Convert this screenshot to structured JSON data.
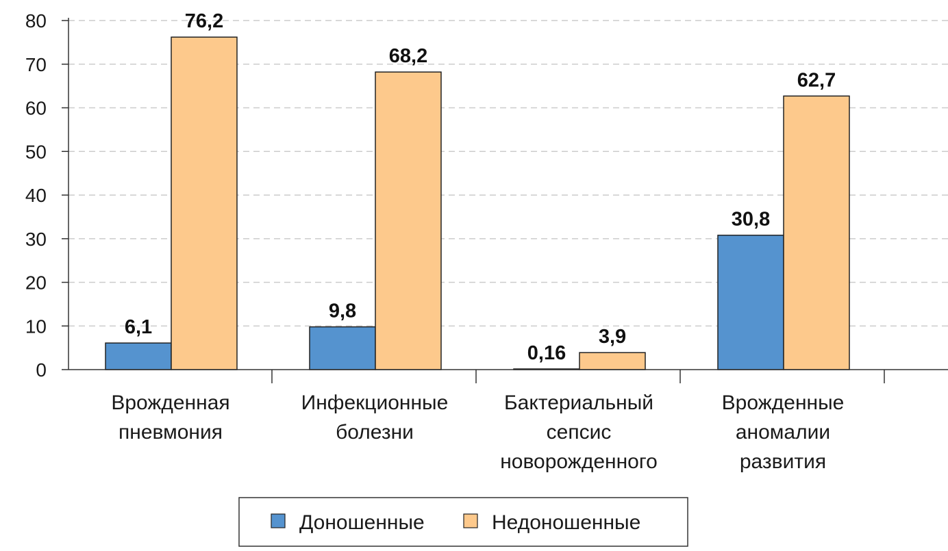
{
  "chart_data": {
    "type": "bar",
    "categories": [
      [
        "Врожденная",
        "пневмония"
      ],
      [
        "Инфекционные",
        "болезни"
      ],
      [
        "Бактериальный",
        "сепсис",
        "новорожденного"
      ],
      [
        "Врожденные",
        "аномалии",
        "развития"
      ]
    ],
    "series": [
      {
        "name": "Доношенные",
        "color": "#5593cf",
        "values": [
          6.1,
          9.8,
          0.16,
          30.8
        ],
        "labels": [
          "6,1",
          "9,8",
          "0,16",
          "30,8"
        ]
      },
      {
        "name": "Недоношенные",
        "color": "#fdc98c",
        "values": [
          76.2,
          68.2,
          3.9,
          62.7
        ],
        "labels": [
          "76,2",
          "68,2",
          "3,9",
          "62,7"
        ]
      }
    ],
    "ylim": [
      0,
      80
    ],
    "yticks": [
      0,
      10,
      20,
      30,
      40,
      50,
      60,
      70,
      80
    ],
    "grid": true,
    "legend_position": "bottom",
    "title": "",
    "xlabel": "",
    "ylabel": ""
  }
}
